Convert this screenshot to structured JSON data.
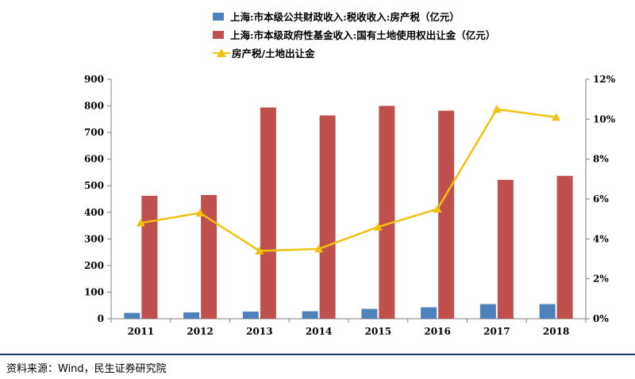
{
  "colors": {
    "blue": "#4f81bd",
    "red": "#c0504d",
    "yellow": "#f2c10f"
  },
  "chart_data": {
    "type": "bar",
    "categories": [
      "2011",
      "2012",
      "2013",
      "2014",
      "2015",
      "2016",
      "2017",
      "2018"
    ],
    "series": [
      {
        "name": "上海:市本级公共财政收入:税收收入:房产税（亿元）",
        "kind": "bar",
        "axis": "left",
        "values": [
          22,
          24,
          27,
          28,
          37,
          43,
          55,
          55
        ]
      },
      {
        "name": "上海:市本级政府性基金收入:国有土地使用权出让金（亿元）",
        "kind": "bar",
        "axis": "left",
        "values": [
          462,
          465,
          794,
          764,
          800,
          782,
          522,
          537
        ]
      },
      {
        "name": "房产税/土地出让金",
        "kind": "line",
        "axis": "right",
        "values": [
          4.8,
          5.3,
          3.4,
          3.5,
          4.6,
          5.5,
          10.5,
          10.1
        ]
      }
    ],
    "y_left": {
      "ylim": [
        0,
        900
      ],
      "ticks": [
        "0",
        "100",
        "200",
        "300",
        "400",
        "500",
        "600",
        "700",
        "800",
        "900"
      ]
    },
    "y_right": {
      "ylim": [
        0,
        12
      ],
      "ticks": [
        "0%",
        "2%",
        "4%",
        "6%",
        "8%",
        "10%",
        "12%"
      ]
    },
    "legend_position": "top"
  },
  "source": "资料来源：Wind，民生证券研究院"
}
